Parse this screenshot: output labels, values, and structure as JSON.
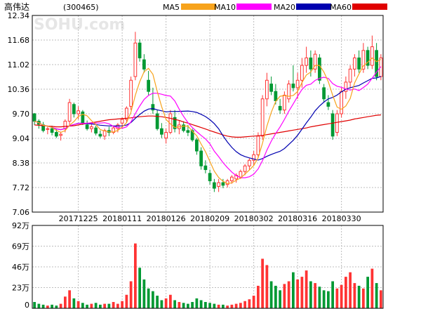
{
  "header": {
    "name": "高伟达",
    "code": "(300465)",
    "watermark": "SOHU.com"
  },
  "legend": [
    {
      "name": "MA5",
      "color": "#f7a31c"
    },
    {
      "name": "MA10",
      "color": "#ff00ff"
    },
    {
      "name": "MA20",
      "color": "#0000b0"
    },
    {
      "name": "MA60",
      "color": "#e00000"
    }
  ],
  "colors": {
    "up": "#ff3333",
    "down": "#009933",
    "ma5": "#f7a31c",
    "ma10": "#ff00ff",
    "ma20": "#0000b0",
    "ma60": "#e00000"
  },
  "chart_data": [
    {
      "type": "candlestick",
      "ylim": [
        7.06,
        12.34
      ],
      "y_ticks": [
        "12.34",
        "11.68",
        "11.02",
        "10.36",
        "9.70",
        "9.04",
        "8.38",
        "7.72",
        "7.06"
      ],
      "x_tick_labels": [
        "20171225",
        "20180111",
        "20180126",
        "20180209",
        "20180302",
        "20180316",
        "20180330"
      ],
      "x_tick_index": [
        10,
        20,
        30,
        40,
        50,
        60,
        70
      ],
      "ohlc": [
        [
          9.7,
          9.72,
          9.4,
          9.5
        ],
        [
          9.5,
          9.55,
          9.3,
          9.42
        ],
        [
          9.4,
          9.48,
          9.2,
          9.25
        ],
        [
          9.28,
          9.35,
          9.15,
          9.3
        ],
        [
          9.3,
          9.38,
          9.12,
          9.2
        ],
        [
          9.2,
          9.28,
          9.05,
          9.1
        ],
        [
          9.12,
          9.22,
          8.98,
          9.15
        ],
        [
          9.3,
          9.55,
          9.2,
          9.5
        ],
        [
          9.5,
          10.1,
          9.4,
          10.0
        ],
        [
          9.95,
          10.0,
          9.6,
          9.7
        ],
        [
          9.7,
          9.9,
          9.55,
          9.78
        ],
        [
          9.75,
          9.8,
          9.4,
          9.45
        ],
        [
          9.4,
          9.52,
          9.25,
          9.3
        ],
        [
          9.3,
          9.42,
          9.2,
          9.35
        ],
        [
          9.32,
          9.38,
          9.12,
          9.18
        ],
        [
          9.15,
          9.25,
          9.05,
          9.1
        ],
        [
          9.1,
          9.3,
          9.0,
          9.25
        ],
        [
          9.25,
          9.35,
          9.1,
          9.2
        ],
        [
          9.2,
          9.38,
          9.15,
          9.32
        ],
        [
          9.3,
          9.45,
          9.2,
          9.4
        ],
        [
          9.45,
          9.6,
          9.3,
          9.55
        ],
        [
          9.55,
          9.9,
          9.45,
          9.85
        ],
        [
          9.9,
          10.7,
          9.8,
          10.6
        ],
        [
          10.7,
          11.9,
          10.6,
          11.6
        ],
        [
          11.6,
          11.7,
          11.1,
          11.2
        ],
        [
          11.15,
          11.3,
          10.8,
          10.9
        ],
        [
          10.6,
          10.85,
          10.2,
          10.3
        ],
        [
          9.95,
          10.4,
          9.7,
          9.8
        ],
        [
          9.7,
          9.8,
          9.25,
          9.3
        ],
        [
          9.3,
          9.45,
          9.05,
          9.15
        ],
        [
          9.05,
          9.3,
          8.9,
          9.2
        ],
        [
          9.2,
          9.8,
          9.15,
          9.7
        ],
        [
          9.6,
          9.8,
          9.2,
          9.3
        ],
        [
          9.3,
          9.52,
          9.15,
          9.4
        ],
        [
          9.4,
          9.5,
          9.2,
          9.25
        ],
        [
          9.25,
          9.4,
          9.1,
          9.2
        ],
        [
          9.25,
          9.3,
          8.95,
          9.0
        ],
        [
          9.0,
          9.05,
          8.6,
          8.7
        ],
        [
          8.7,
          8.8,
          8.2,
          8.3
        ],
        [
          8.3,
          8.45,
          8.1,
          8.2
        ],
        [
          8.1,
          8.2,
          7.8,
          7.9
        ],
        [
          7.85,
          7.95,
          7.6,
          7.7
        ],
        [
          7.75,
          7.95,
          7.6,
          7.85
        ],
        [
          7.85,
          7.95,
          7.7,
          7.78
        ],
        [
          7.8,
          7.95,
          7.72,
          7.9
        ],
        [
          7.9,
          8.05,
          7.82,
          8.0
        ],
        [
          7.95,
          8.1,
          7.85,
          8.05
        ],
        [
          8.0,
          8.2,
          7.95,
          8.15
        ],
        [
          8.15,
          8.35,
          8.05,
          8.3
        ],
        [
          8.3,
          8.5,
          8.2,
          8.45
        ],
        [
          8.45,
          8.7,
          8.3,
          8.6
        ],
        [
          8.6,
          9.2,
          8.5,
          9.1
        ],
        [
          9.1,
          10.2,
          9.0,
          10.1
        ],
        [
          10.1,
          10.8,
          9.9,
          10.6
        ],
        [
          10.5,
          10.7,
          10.2,
          10.3
        ],
        [
          10.3,
          10.5,
          9.95,
          10.05
        ],
        [
          9.9,
          10.1,
          9.7,
          9.8
        ],
        [
          9.8,
          10.3,
          9.7,
          10.2
        ],
        [
          10.1,
          10.6,
          10.0,
          10.5
        ],
        [
          10.5,
          11.0,
          10.3,
          10.4
        ],
        [
          10.4,
          10.8,
          10.1,
          10.6
        ],
        [
          10.6,
          11.2,
          10.4,
          11.0
        ],
        [
          11.0,
          11.5,
          10.8,
          11.2
        ],
        [
          11.2,
          11.4,
          10.7,
          10.9
        ],
        [
          10.9,
          11.4,
          10.8,
          11.3
        ],
        [
          11.2,
          11.3,
          10.5,
          10.6
        ],
        [
          10.4,
          10.5,
          10.0,
          10.1
        ],
        [
          10.0,
          10.2,
          9.8,
          9.9
        ],
        [
          9.7,
          9.8,
          9.0,
          9.1
        ],
        [
          9.2,
          9.8,
          9.1,
          9.7
        ],
        [
          9.7,
          10.4,
          9.6,
          10.3
        ],
        [
          10.3,
          10.7,
          10.1,
          10.55
        ],
        [
          10.55,
          11.0,
          10.4,
          10.9
        ],
        [
          10.9,
          11.3,
          10.7,
          11.2
        ],
        [
          11.2,
          11.4,
          10.8,
          10.9
        ],
        [
          10.9,
          11.6,
          10.8,
          11.4
        ],
        [
          11.4,
          11.5,
          10.9,
          11.0
        ],
        [
          11.0,
          11.8,
          10.9,
          11.5
        ],
        [
          11.4,
          11.6,
          10.6,
          10.7
        ],
        [
          10.7,
          11.3,
          10.6,
          11.2
        ]
      ],
      "ma60": [
        9.4,
        9.39,
        9.38,
        9.37,
        9.36,
        9.35,
        9.35,
        9.36,
        9.37,
        9.38,
        9.4,
        9.42,
        9.44,
        9.46,
        9.48,
        9.5,
        9.52,
        9.54,
        9.55,
        9.56,
        9.57,
        9.58,
        9.59,
        9.61,
        9.62,
        9.63,
        9.64,
        9.64,
        9.63,
        9.62,
        9.6,
        9.58,
        9.55,
        9.52,
        9.48,
        9.45,
        9.41,
        9.37,
        9.33,
        9.29,
        9.25,
        9.21,
        9.17,
        9.13,
        9.1,
        9.08,
        9.07,
        9.07,
        9.08,
        9.09,
        9.1,
        9.11,
        9.12,
        9.14,
        9.16,
        9.18,
        9.2,
        9.22,
        9.24,
        9.26,
        9.28,
        9.3,
        9.32,
        9.35,
        9.37,
        9.39,
        9.41,
        9.43,
        9.45,
        9.47,
        9.49,
        9.51,
        9.53,
        9.56,
        9.58,
        9.6,
        9.62,
        9.64,
        9.66,
        9.67
      ]
    },
    {
      "type": "bar",
      "unit": "万",
      "ylim": [
        0,
        92
      ],
      "y_ticks": [
        "92万",
        "69万",
        "46万",
        "23万",
        "0"
      ],
      "values": [
        7,
        5,
        4,
        3,
        4,
        3,
        5,
        13,
        20,
        11,
        8,
        6,
        4,
        5,
        6,
        4,
        5,
        5,
        7,
        5,
        8,
        15,
        30,
        72,
        45,
        32,
        22,
        19,
        14,
        9,
        11,
        15,
        9,
        7,
        6,
        5,
        7,
        11,
        9,
        7,
        6,
        5,
        4,
        4,
        3,
        4,
        5,
        6,
        8,
        10,
        14,
        25,
        55,
        48,
        30,
        25,
        20,
        27,
        30,
        40,
        32,
        35,
        42,
        30,
        28,
        24,
        20,
        19,
        30,
        22,
        26,
        35,
        40,
        28,
        25,
        22,
        35,
        44,
        28,
        20
      ]
    }
  ]
}
